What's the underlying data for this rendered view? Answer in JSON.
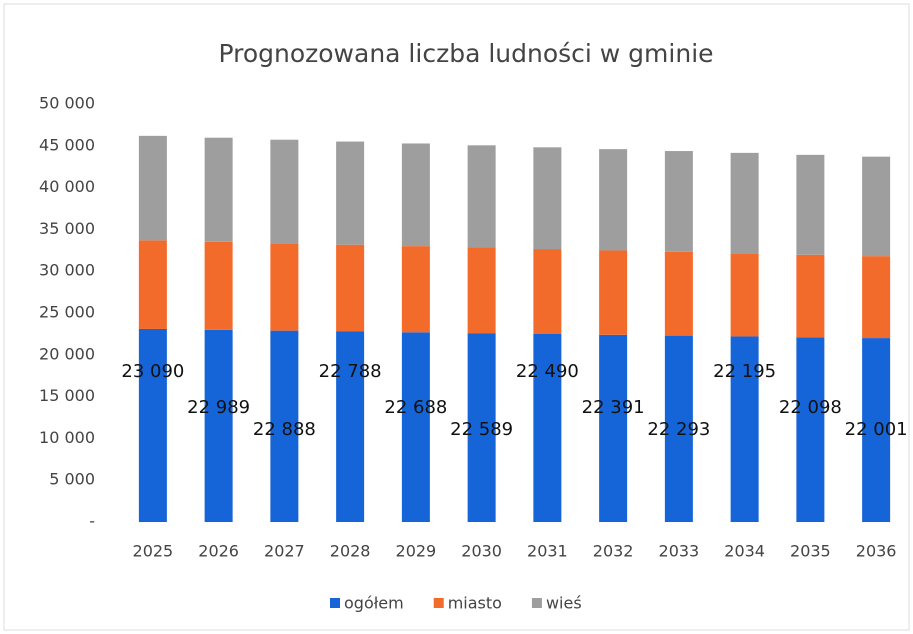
{
  "chart_data": {
    "type": "stacked_bar",
    "title": "Prognozowana liczba ludności w gminie",
    "categories": [
      "2025",
      "2026",
      "2027",
      "2028",
      "2029",
      "2030",
      "2031",
      "2032",
      "2033",
      "2034",
      "2035",
      "2036"
    ],
    "series": [
      {
        "name": "ogółem",
        "color": "#1565d8",
        "values": [
          23090,
          22989,
          22888,
          22788,
          22688,
          22589,
          22490,
          22391,
          22293,
          22195,
          22098,
          22001
        ],
        "value_labels": [
          "23 090",
          "22 989",
          "22 888",
          "22 788",
          "22 688",
          "22 589",
          "22 490",
          "22 391",
          "22 293",
          "22 195",
          "22 098",
          "22 001"
        ]
      },
      {
        "name": "miasto",
        "color": "#f26b2a",
        "values": [
          10600,
          10530,
          10450,
          10380,
          10310,
          10240,
          10160,
          10090,
          10020,
          9950,
          9870,
          9800
        ]
      },
      {
        "name": "wieś",
        "color": "#9e9e9e",
        "values": [
          12500,
          12450,
          12390,
          12340,
          12280,
          12230,
          12170,
          12120,
          12060,
          12010,
          11950,
          11900
        ]
      }
    ],
    "ylim": [
      0,
      50000
    ],
    "yticks": [
      {
        "value": 0,
        "label": "-"
      },
      {
        "value": 5000,
        "label": "5 000"
      },
      {
        "value": 10000,
        "label": "10 000"
      },
      {
        "value": 15000,
        "label": "15 000"
      },
      {
        "value": 20000,
        "label": "20 000"
      },
      {
        "value": 25000,
        "label": "25 000"
      },
      {
        "value": 30000,
        "label": "30 000"
      },
      {
        "value": 35000,
        "label": "35 000"
      },
      {
        "value": 40000,
        "label": "40 000"
      },
      {
        "value": 45000,
        "label": "45 000"
      },
      {
        "value": 50000,
        "label": "50 000"
      }
    ],
    "legend": "bottom"
  }
}
